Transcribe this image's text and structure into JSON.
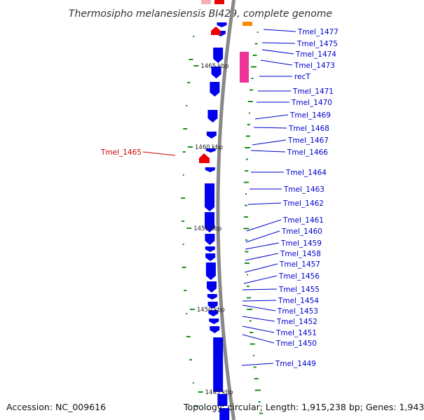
{
  "title": "Thermosipho melanesiensis BI429, complete genome",
  "footer": {
    "accession": "Accession: NC_009616",
    "topology": "Topology: circular; Length: 1,915,238 bp; Genes: 1,943"
  },
  "colors": {
    "cds": "#0000ee",
    "rna": "#ee0000",
    "pink": "#ee3399",
    "orange": "#ff8800",
    "backbone": "#888888",
    "gc_tick": "#1a8f1a",
    "label_blue": "#0000cc",
    "label_red": "#cc0000"
  },
  "ticks": [
    {
      "kbp": 1465,
      "label": "1465 kbp"
    },
    {
      "kbp": 1460,
      "label": "1460 kbp"
    },
    {
      "kbp": 1455,
      "label": "1455 kbp"
    },
    {
      "kbp": 1450,
      "label": "1450 kbp"
    },
    {
      "kbp": 1445,
      "label": "1445 kbp"
    }
  ],
  "genes": [
    {
      "name": "Tmel_1477",
      "type": "cds"
    },
    {
      "name": "Tmel_1475",
      "type": "cds"
    },
    {
      "name": "Tmel_1474",
      "type": "cds"
    },
    {
      "name": "Tmel_1473",
      "type": "cds"
    },
    {
      "name": "recT",
      "type": "cds"
    },
    {
      "name": "Tmel_1471",
      "type": "cds"
    },
    {
      "name": "Tmel_1470",
      "type": "cds"
    },
    {
      "name": "Tmel_1469",
      "type": "cds"
    },
    {
      "name": "Tmel_1468",
      "type": "cds"
    },
    {
      "name": "Tmel_1467",
      "type": "cds"
    },
    {
      "name": "Tmel_1466",
      "type": "cds"
    },
    {
      "name": "Tmel_1465",
      "type": "rna"
    },
    {
      "name": "Tmel_1464",
      "type": "cds"
    },
    {
      "name": "Tmel_1463",
      "type": "cds"
    },
    {
      "name": "Tmel_1462",
      "type": "cds"
    },
    {
      "name": "Tmel_1461",
      "type": "cds"
    },
    {
      "name": "Tmel_1460",
      "type": "cds"
    },
    {
      "name": "Tmel_1459",
      "type": "cds"
    },
    {
      "name": "Tmel_1458",
      "type": "cds"
    },
    {
      "name": "Tmel_1457",
      "type": "cds"
    },
    {
      "name": "Tmel_1456",
      "type": "cds"
    },
    {
      "name": "Tmel_1455",
      "type": "cds"
    },
    {
      "name": "Tmel_1454",
      "type": "cds"
    },
    {
      "name": "Tmel_1453",
      "type": "cds"
    },
    {
      "name": "Tmel_1452",
      "type": "cds"
    },
    {
      "name": "Tmel_1451",
      "type": "cds"
    },
    {
      "name": "Tmel_1450",
      "type": "cds"
    },
    {
      "name": "Tmel_1449",
      "type": "cds"
    }
  ]
}
